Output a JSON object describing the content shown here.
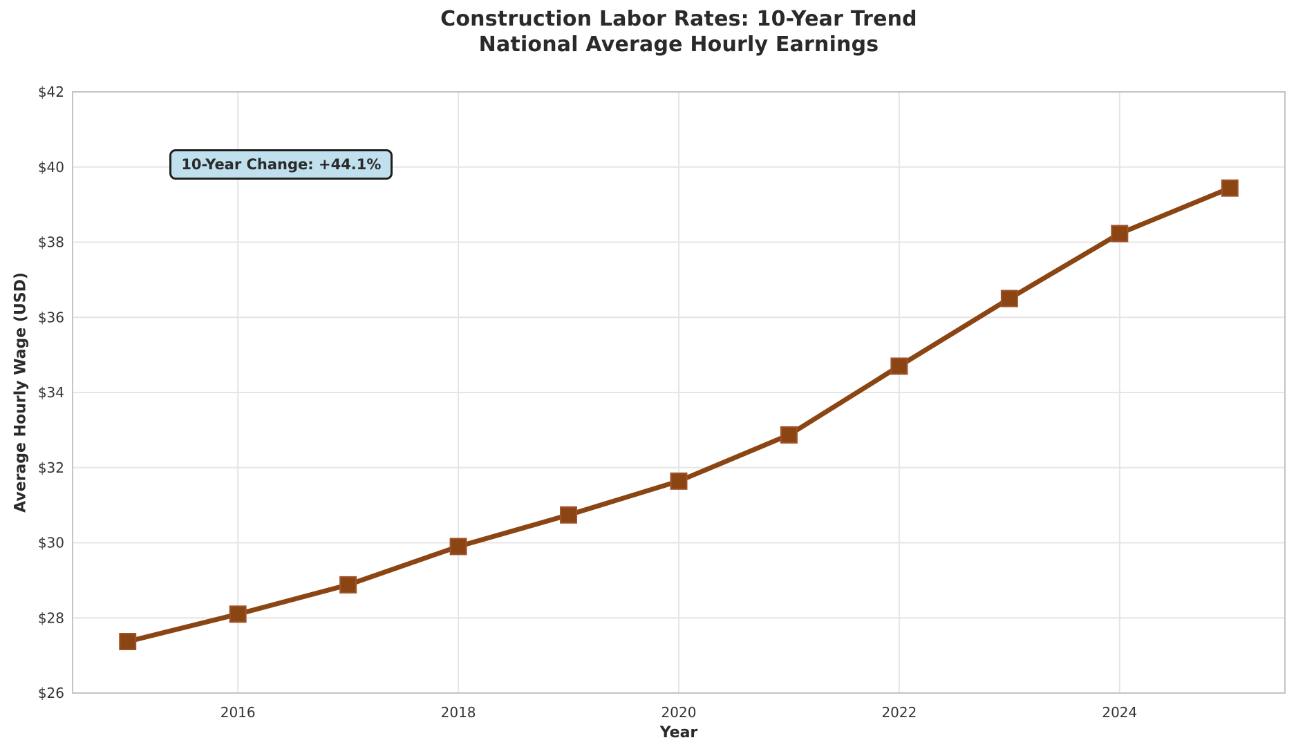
{
  "chart_data": {
    "type": "line",
    "title": "Construction Labor Rates: 10-Year Trend",
    "subtitle": "National Average Hourly Earnings",
    "xlabel": "Year",
    "ylabel": "Average Hourly Wage (USD)",
    "x": [
      2015,
      2016,
      2017,
      2018,
      2019,
      2020,
      2021,
      2022,
      2023,
      2024,
      2025
    ],
    "values": [
      27.37,
      28.1,
      28.88,
      29.9,
      30.74,
      31.64,
      32.87,
      34.7,
      36.5,
      38.23,
      39.44
    ],
    "xlim": [
      2014.5,
      2025.5
    ],
    "ylim": [
      26,
      42
    ],
    "xticks": {
      "values": [
        2016,
        2018,
        2020,
        2022,
        2024
      ],
      "labels": [
        "2016",
        "2018",
        "2020",
        "2022",
        "2024"
      ]
    },
    "yticks": {
      "values": [
        26,
        28,
        30,
        32,
        34,
        36,
        38,
        40,
        42
      ],
      "labels": [
        "$26",
        "$28",
        "$30",
        "$32",
        "$34",
        "$36",
        "$38",
        "$40",
        "$42"
      ]
    },
    "grid": true,
    "legend": false,
    "marker_shape": "square",
    "annotation": {
      "text": "10-Year Change: +44.1%",
      "x": 2015.38,
      "y": 40.47
    },
    "colors": {
      "line": "#8B4513",
      "marker": "#8B4513",
      "marker_edge": "#A0522D",
      "grid": "#e5e5e5",
      "spine": "#c4c4c4",
      "tick_text": "#333333",
      "title_text": "#2a2a2a",
      "annotation_bg": "#bfe0ec",
      "annotation_border": "#1f1f1f",
      "background": "#ffffff"
    }
  }
}
